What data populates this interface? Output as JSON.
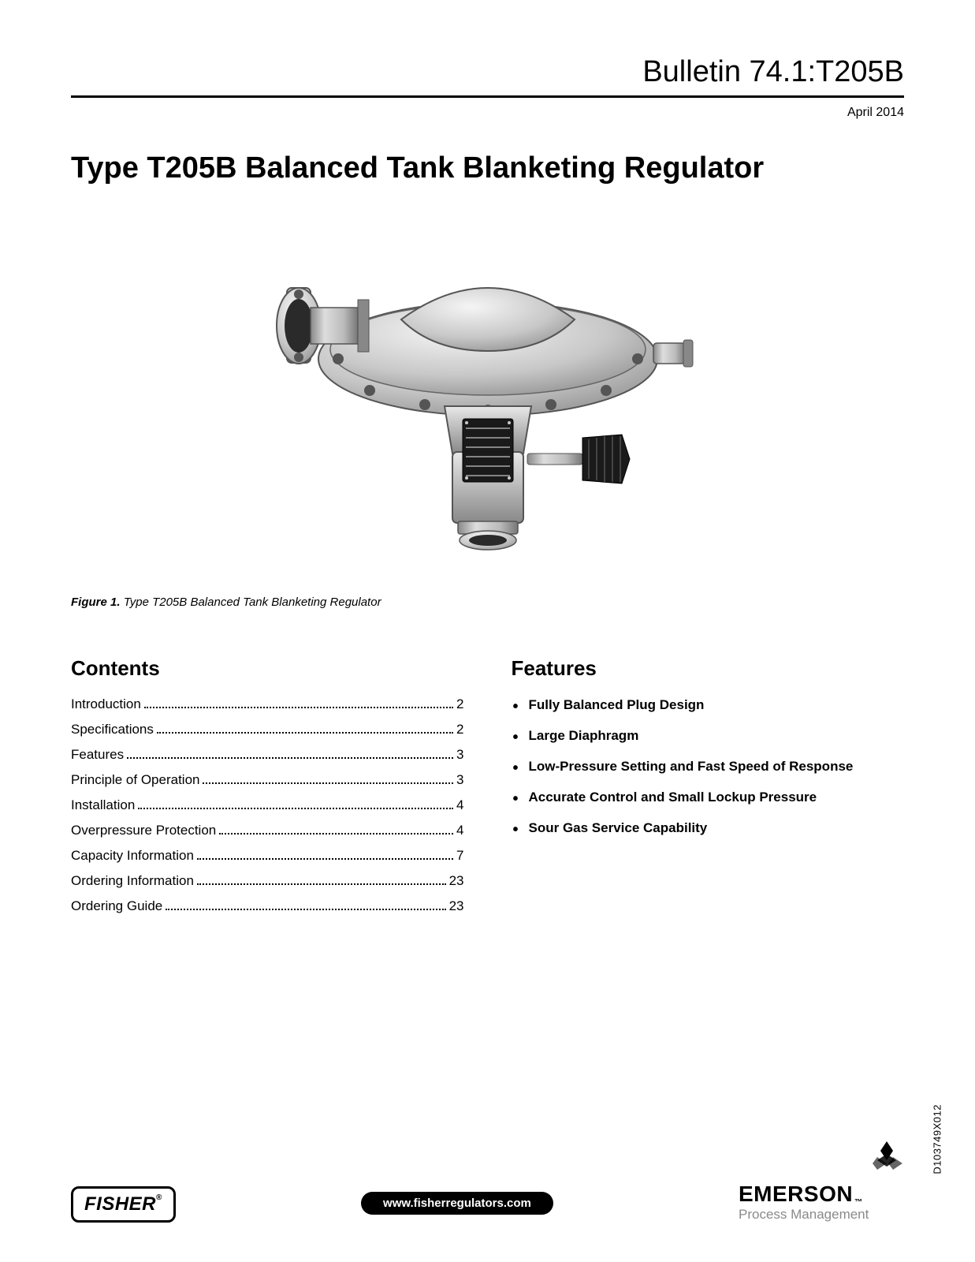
{
  "header": {
    "bulletin": "Bulletin 74.1:T205B",
    "date": "April 2014"
  },
  "title": "Type T205B Balanced Tank Blanketing Regulator",
  "figure": {
    "label": "Figure 1.",
    "caption": "Type T205B Balanced Tank Blanketing Regulator"
  },
  "contents": {
    "heading": "Contents",
    "items": [
      {
        "label": "Introduction",
        "page": "2"
      },
      {
        "label": "Specifications",
        "page": "2"
      },
      {
        "label": "Features",
        "page": "3"
      },
      {
        "label": "Principle of Operation",
        "page": "3"
      },
      {
        "label": "Installation",
        "page": "4"
      },
      {
        "label": "Overpressure Protection",
        "page": "4"
      },
      {
        "label": "Capacity Information",
        "page": "7"
      },
      {
        "label": "Ordering Information",
        "page": "23"
      },
      {
        "label": "Ordering Guide",
        "page": "23"
      }
    ]
  },
  "features": {
    "heading": "Features",
    "items": [
      "Fully Balanced Plug Design",
      "Large Diaphragm",
      "Low-Pressure Setting and Fast Speed of Response",
      "Accurate Control and Small Lockup Pressure",
      "Sour Gas Service Capability"
    ]
  },
  "footer": {
    "fisher": "FISHER",
    "url": "www.fisherregulators.com",
    "emerson_name": "EMERSON",
    "emerson_sub": "Process Management"
  },
  "doc_code": "D103749X012",
  "colors": {
    "text": "#000000",
    "background": "#ffffff",
    "subtext": "#8a8a8a",
    "pill_bg": "#000000",
    "pill_text": "#ffffff"
  },
  "typography": {
    "bulletin_fontsize": 38,
    "title_fontsize": 38,
    "section_heading_fontsize": 26,
    "body_fontsize": 17,
    "date_fontsize": 16,
    "caption_fontsize": 15
  }
}
